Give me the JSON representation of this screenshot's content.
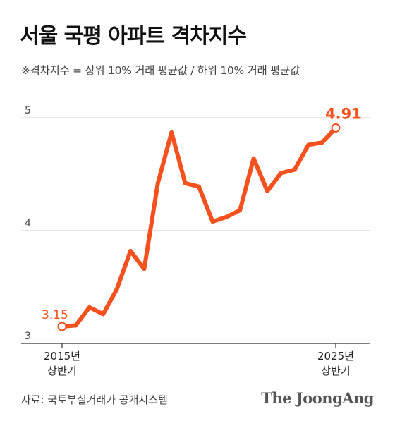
{
  "title": "서울 국평 아파트 격차지수",
  "subtitle": "※격차지수 = 상위 10% 거래 평균값 / 하위 10% 거래 평균값",
  "source": "자료: 국토부실거래가 공개시스템",
  "brand": "The JoongAng",
  "colors": {
    "line": "#f4511e",
    "grid": "#cccccc",
    "axis": "#333333"
  },
  "chart_data": {
    "type": "line",
    "x_start_label": [
      "2015년",
      "상반기"
    ],
    "x_end_label": [
      "2025년",
      "상반기"
    ],
    "y_ticks": [
      3,
      4,
      5
    ],
    "ylim": [
      3,
      5.05
    ],
    "grid": true,
    "points": [
      3.15,
      3.16,
      3.32,
      3.26,
      3.48,
      3.82,
      3.66,
      4.42,
      4.87,
      4.42,
      4.39,
      4.08,
      4.12,
      4.18,
      4.64,
      4.35,
      4.51,
      4.54,
      4.76,
      4.78,
      4.91
    ],
    "annotations": {
      "first": "3.15",
      "last": "4.91"
    }
  }
}
